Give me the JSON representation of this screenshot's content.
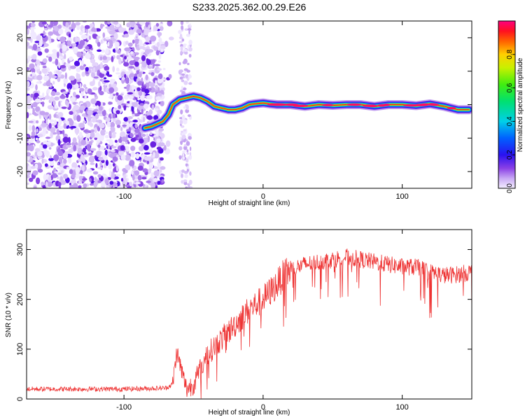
{
  "title": "S233.2025.362.00.29.E26",
  "chart_data": [
    {
      "type": "heatmap",
      "xlabel": "Height of straight line (km)",
      "ylabel": "Frequency (Hz)",
      "xlim": [
        -170,
        150
      ],
      "ylim": [
        -25,
        25
      ],
      "xticks": [
        -100,
        0,
        100
      ],
      "xtick_labels": [
        "-100",
        "0",
        "100"
      ],
      "yticks": [
        20,
        10,
        0,
        -10,
        -20
      ],
      "ytick_labels": [
        "20",
        "10",
        "0",
        "-10",
        "-20"
      ],
      "colorbar": {
        "label": "Normalized spectral amplitude",
        "range": [
          0,
          1
        ],
        "ticks": [
          0.0,
          0.2,
          0.4,
          0.6,
          0.8
        ],
        "tick_labels": [
          "0.0",
          "0.2",
          "0.4",
          "0.6",
          "0.8"
        ]
      },
      "ridge": {
        "x": [
          -85,
          -80,
          -72,
          -68,
          -65,
          -60,
          -55,
          -50,
          -45,
          -40,
          -35,
          -30,
          -25,
          -20,
          -15,
          -10,
          -5,
          0,
          5,
          10,
          20,
          30,
          40,
          50,
          60,
          70,
          80,
          90,
          100,
          110,
          120,
          130,
          140,
          148
        ],
        "y": [
          -7,
          -6.5,
          -5,
          -3,
          0,
          1.5,
          2,
          2.5,
          2,
          1,
          -0.5,
          -1,
          -1.5,
          -1.5,
          -1,
          0,
          0.3,
          0.5,
          0.2,
          0,
          0,
          -0.5,
          0,
          -0.2,
          0,
          0,
          -0.5,
          0,
          0,
          -0.3,
          0.2,
          -0.5,
          -1.5,
          -1.5
        ]
      }
    },
    {
      "type": "line",
      "xlabel": "Height of straight line (km)",
      "ylabel": "SNR (10 * v/v)",
      "xlim": [
        -170,
        150
      ],
      "ylim": [
        0,
        340
      ],
      "xticks": [
        -100,
        0,
        100
      ],
      "xtick_labels": [
        "-100",
        "0",
        "100"
      ],
      "yticks": [
        0,
        100,
        200,
        300
      ],
      "ytick_labels": [
        "0",
        "100",
        "200",
        "300"
      ],
      "color": "#ee3333",
      "series": [
        {
          "name": "SNR",
          "x": [
            -170,
            -100,
            -70,
            -65,
            -62,
            -58,
            -55,
            -50,
            -45,
            -40,
            -30,
            -20,
            -10,
            0,
            10,
            15,
            20,
            30,
            40,
            50,
            60,
            70,
            80,
            90,
            100,
            110,
            120,
            130,
            140,
            150
          ],
          "y": [
            20,
            20,
            22,
            30,
            95,
            50,
            20,
            30,
            60,
            90,
            120,
            150,
            180,
            200,
            230,
            250,
            260,
            270,
            275,
            280,
            285,
            280,
            275,
            270,
            265,
            265,
            255,
            248,
            250,
            255
          ]
        }
      ]
    }
  ]
}
